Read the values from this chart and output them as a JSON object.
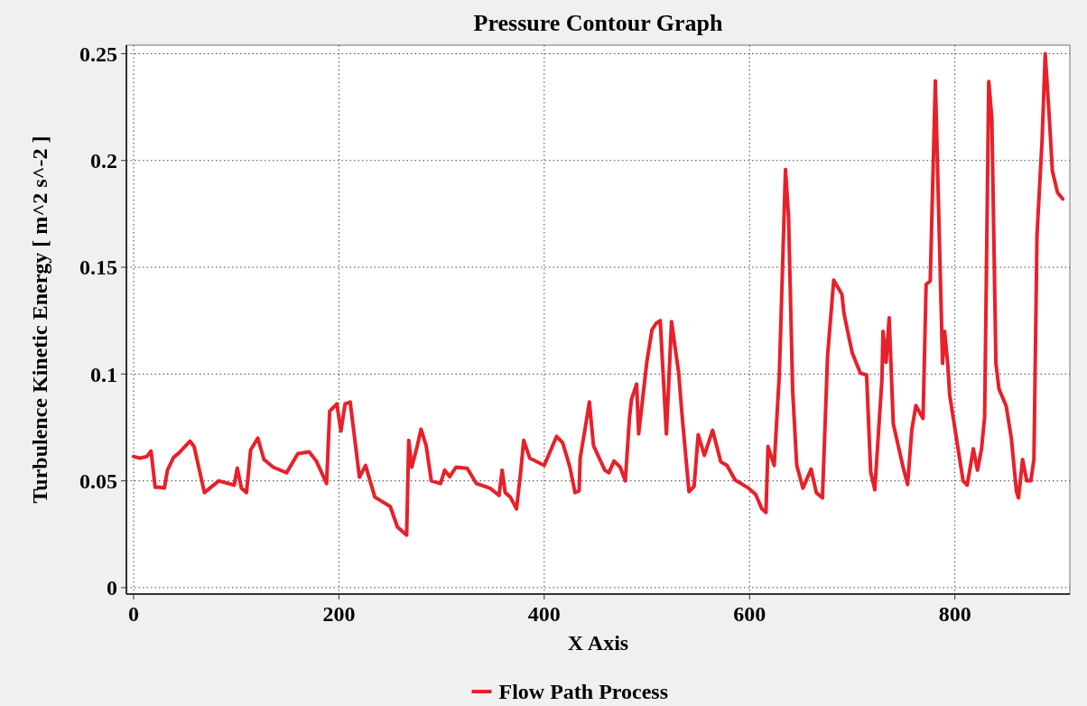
{
  "chart_data": {
    "type": "line",
    "title": "Pressure Contour Graph",
    "xlabel": "X Axis",
    "ylabel": "Turbulence Kinetic Energy [ m^2 s^-2 ]",
    "xlim": [
      -7,
      912
    ],
    "xticks": [
      0,
      200,
      400,
      600,
      800
    ],
    "ylim": [
      -0.003,
      0.254
    ],
    "yticks": [
      0,
      0.05,
      0.1,
      0.15,
      0.2,
      0.25
    ],
    "grid": true,
    "legend": "bottom",
    "line_style": "solid",
    "marker": "none",
    "series": [
      {
        "name": "Flow Path Process",
        "color": "#e8202a",
        "x": [
          0,
          6,
          13,
          17,
          21,
          26,
          30,
          33,
          39,
          44,
          55,
          59,
          69,
          83,
          98,
          101,
          105,
          110,
          114,
          121,
          127,
          136,
          149,
          160,
          171,
          178,
          188,
          191,
          198,
          202,
          206,
          211,
          220,
          226,
          235,
          250,
          257,
          266,
          268,
          271,
          276,
          280,
          285,
          290,
          299,
          303,
          308,
          314,
          325,
          334,
          347,
          356,
          359,
          362,
          367,
          373,
          377,
          380,
          386,
          400,
          412,
          418,
          425,
          430,
          434,
          435,
          440,
          444,
          448,
          459,
          463,
          468,
          474,
          479,
          483,
          485,
          490,
          492,
          500,
          505,
          509,
          513,
          519,
          524,
          531,
          534,
          541,
          546,
          550,
          556,
          564,
          572,
          578,
          586,
          599,
          606,
          612,
          616,
          618,
          624,
          629,
          635,
          638,
          642,
          646,
          652,
          660,
          665,
          671,
          676,
          682,
          690,
          692,
          696,
          700,
          708,
          714,
          718,
          722,
          729,
          730,
          733,
          736,
          740,
          750,
          754,
          758,
          762,
          769,
          772,
          776,
          781,
          788,
          790,
          793,
          795,
          808,
          812,
          818,
          822,
          826,
          829,
          833,
          836,
          840,
          843,
          850,
          855,
          860,
          862,
          866,
          870,
          874,
          877,
          880,
          885,
          888,
          892,
          895,
          900,
          905
        ],
        "values": [
          0.0614,
          0.0606,
          0.0614,
          0.064,
          0.047,
          0.047,
          0.0466,
          0.055,
          0.061,
          0.063,
          0.0686,
          0.066,
          0.0445,
          0.05,
          0.048,
          0.056,
          0.0466,
          0.0445,
          0.0644,
          0.07,
          0.06,
          0.0564,
          0.0538,
          0.0627,
          0.0636,
          0.0593,
          0.0487,
          0.0826,
          0.086,
          0.0733,
          0.086,
          0.0869,
          0.0517,
          0.0572,
          0.0424,
          0.038,
          0.0284,
          0.0246,
          0.069,
          0.0564,
          0.0657,
          0.0742,
          0.0665,
          0.05,
          0.0487,
          0.055,
          0.052,
          0.0564,
          0.0559,
          0.0487,
          0.0466,
          0.0432,
          0.055,
          0.0445,
          0.0424,
          0.0369,
          0.0538,
          0.069,
          0.0606,
          0.0572,
          0.0708,
          0.0678,
          0.0564,
          0.0445,
          0.0453,
          0.0606,
          0.075,
          0.0869,
          0.0665,
          0.055,
          0.0538,
          0.0593,
          0.0564,
          0.05,
          0.0792,
          0.0881,
          0.0953,
          0.072,
          0.1059,
          0.1208,
          0.1237,
          0.125,
          0.072,
          0.1246,
          0.1004,
          0.0822,
          0.0449,
          0.0475,
          0.0716,
          0.0619,
          0.0737,
          0.0589,
          0.0572,
          0.0504,
          0.0466,
          0.0436,
          0.0369,
          0.0352,
          0.0661,
          0.0572,
          0.0996,
          0.1958,
          0.1737,
          0.092,
          0.0572,
          0.0466,
          0.0555,
          0.0445,
          0.042,
          0.1085,
          0.144,
          0.1373,
          0.1284,
          0.119,
          0.11,
          0.1004,
          0.0996,
          0.0542,
          0.0458,
          0.0979,
          0.12,
          0.1055,
          0.1263,
          0.0767,
          0.0555,
          0.0483,
          0.0737,
          0.0852,
          0.0792,
          0.142,
          0.1436,
          0.2373,
          0.105,
          0.12,
          0.105,
          0.09,
          0.05,
          0.048,
          0.065,
          0.055,
          0.065,
          0.08,
          0.237,
          0.22,
          0.105,
          0.093,
          0.085,
          0.07,
          0.045,
          0.042,
          0.06,
          0.05,
          0.05,
          0.06,
          0.165,
          0.21,
          0.25,
          0.22,
          0.195,
          0.185,
          0.182
        ]
      }
    ]
  }
}
